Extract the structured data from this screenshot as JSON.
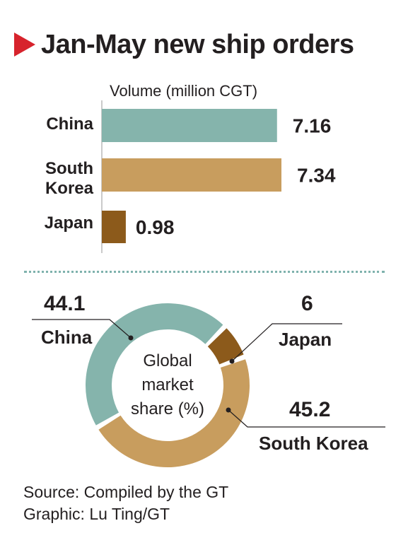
{
  "title": "Jan-May new ship orders",
  "colors": {
    "china": "#85b4ac",
    "south_korea": "#c89d5e",
    "japan": "#8c5a1b",
    "accent": "#d7232c",
    "divider": "#7fb2ad"
  },
  "chart_data": [
    {
      "type": "bar",
      "orientation": "horizontal",
      "title": "Volume (million CGT)",
      "categories": [
        "China",
        "South\nKorea",
        "Japan"
      ],
      "values": [
        7.16,
        7.34,
        0.98
      ],
      "value_labels": [
        "7.16",
        "7.34",
        "0.98"
      ],
      "xlim": [
        0,
        7.34
      ],
      "grid": false,
      "legend": "none"
    },
    {
      "type": "pie",
      "donut": true,
      "center_label": [
        "Global",
        "market",
        "share (%)"
      ],
      "categories": [
        "China",
        "Japan",
        "South Korea"
      ],
      "values": [
        44.1,
        6,
        45.2
      ],
      "value_labels": [
        "44.1",
        "6",
        "45.2"
      ],
      "legend": "none"
    }
  ],
  "bars": {
    "header": "Volume (million CGT)",
    "labels": [
      "China",
      "South",
      "Korea",
      "Japan"
    ]
  },
  "donut": {
    "china_value": "44.1",
    "china_name": "China",
    "japan_value": "6",
    "japan_name": "Japan",
    "korea_value": "45.2",
    "korea_name": "South Korea",
    "center": [
      "Global",
      "market",
      "share (%)"
    ]
  },
  "footer": {
    "source": "Source: Compiled by the GT",
    "graphic": "Graphic: Lu Ting/GT"
  }
}
